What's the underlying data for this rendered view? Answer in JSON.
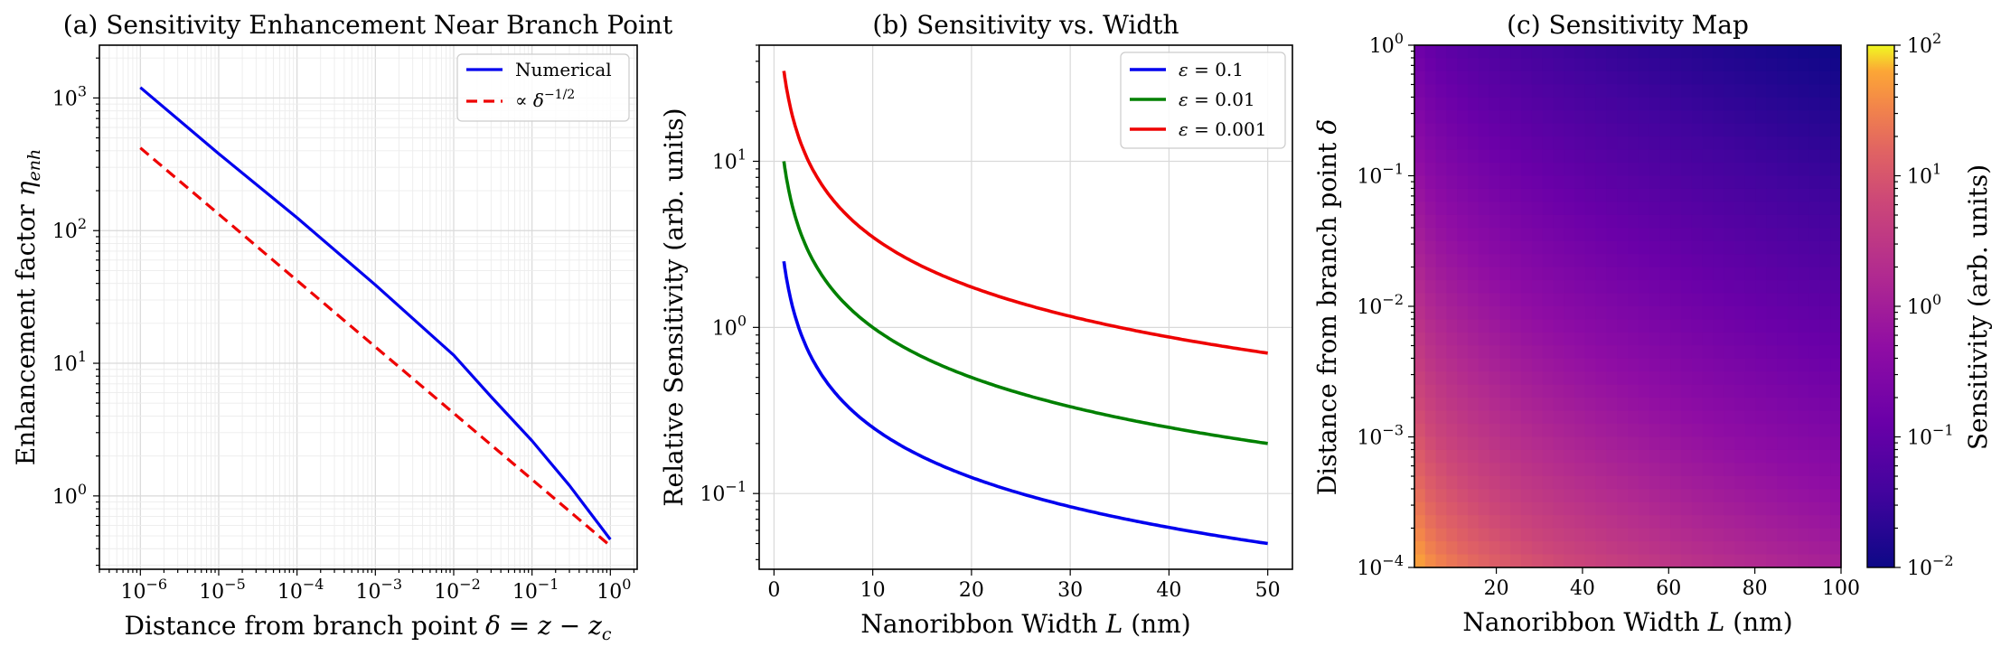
{
  "chart_data": [
    {
      "type": "line",
      "title": "(a) Sensitivity Enhancement Near Branch Point",
      "xlabel": "Distance from branch point δ = z − z_c",
      "ylabel": "Enhancement factor η_enh",
      "xscale": "log",
      "yscale": "log",
      "xlim": [
        3e-07,
        2.2
      ],
      "ylim": [
        0.28,
        2500
      ],
      "xticks": [
        {
          "value": 1e-06,
          "base": "10",
          "exp": "−6"
        },
        {
          "value": 1e-05,
          "base": "10",
          "exp": "−5"
        },
        {
          "value": 0.0001,
          "base": "10",
          "exp": "−4"
        },
        {
          "value": 0.001,
          "base": "10",
          "exp": "−3"
        },
        {
          "value": 0.01,
          "base": "10",
          "exp": "−2"
        },
        {
          "value": 0.1,
          "base": "10",
          "exp": "−1"
        },
        {
          "value": 1,
          "base": "10",
          "exp": "0"
        }
      ],
      "yticks": [
        {
          "value": 1,
          "base": "10",
          "exp": "0"
        },
        {
          "value": 10,
          "base": "10",
          "exp": "1"
        },
        {
          "value": 100,
          "base": "10",
          "exp": "2"
        },
        {
          "value": 1000,
          "base": "10",
          "exp": "3"
        }
      ],
      "grid": true,
      "legend": "top-right",
      "series": [
        {
          "name": "Numerical",
          "color": "#0000ee",
          "dash": "solid",
          "x": [
            1e-06,
            1e-05,
            0.0001,
            0.001,
            0.01,
            0.03,
            0.1,
            0.3,
            1
          ],
          "y": [
            1200,
            380,
            125,
            39,
            11.5,
            5.6,
            2.6,
            1.2,
            0.47
          ]
        },
        {
          "name": "∝ δ^−1/2",
          "color": "#ee0000",
          "dash": "dashed",
          "x": [
            1e-06,
            1e-05,
            0.0001,
            0.001,
            0.01,
            0.1,
            1
          ],
          "y": [
            420,
            133,
            42,
            13.3,
            4.2,
            1.33,
            0.42
          ]
        }
      ]
    },
    {
      "type": "line",
      "title": "(b) Sensitivity vs. Width",
      "xlabel": "Nanoribbon Width L (nm)",
      "ylabel": "Relative Sensitivity (arb. units)",
      "xscale": "linear",
      "yscale": "log",
      "xlim": [
        -1.5,
        52.5
      ],
      "ylim": [
        0.035,
        50
      ],
      "xticks": [
        0,
        10,
        20,
        30,
        40,
        50
      ],
      "yticks": [
        {
          "value": 0.1,
          "base": "10",
          "exp": "−1"
        },
        {
          "value": 1,
          "base": "10",
          "exp": "0"
        },
        {
          "value": 10,
          "base": "10",
          "exp": "1"
        }
      ],
      "grid": true,
      "legend": "top-right",
      "series": [
        {
          "name": "ε = 0.1",
          "color": "#0000ee",
          "amplitude": 2.5
        },
        {
          "name": "ε = 0.01",
          "color": "#008000",
          "amplitude": 10
        },
        {
          "name": "ε = 0.001",
          "color": "#ee0000",
          "amplitude": 35
        }
      ],
      "curve_model": "S(L) = amplitude / L, L from 1 to 50 nm"
    },
    {
      "type": "heatmap",
      "title": "(c) Sensitivity Map",
      "xlabel": "Nanoribbon Width L (nm)",
      "ylabel": "Distance from branch point δ",
      "xscale": "linear",
      "yscale": "log",
      "xlim": [
        1,
        100
      ],
      "ylim": [
        0.0001,
        1
      ],
      "xticks": [
        20,
        40,
        60,
        80,
        100
      ],
      "yticks": [
        {
          "value": 0.0001,
          "base": "10",
          "exp": "−4"
        },
        {
          "value": 0.001,
          "base": "10",
          "exp": "−3"
        },
        {
          "value": 0.01,
          "base": "10",
          "exp": "−2"
        },
        {
          "value": 0.1,
          "base": "10",
          "exp": "−1"
        },
        {
          "value": 1,
          "base": "10",
          "exp": "0"
        }
      ],
      "colormap": "plasma",
      "colorbar": {
        "label": "Sensitivity (arb. units)",
        "scale": "log",
        "range": [
          0.01,
          100
        ],
        "ticks": [
          {
            "value": 0.01,
            "base": "10",
            "exp": "−2"
          },
          {
            "value": 0.1,
            "base": "10",
            "exp": "−1"
          },
          {
            "value": 1,
            "base": "10",
            "exp": "0"
          },
          {
            "value": 10,
            "base": "10",
            "exp": "1"
          },
          {
            "value": 100,
            "base": "10",
            "exp": "2"
          }
        ]
      },
      "corner_values": {
        "L1_delta1e-4": 100,
        "L100_delta1e-4": 1.2,
        "L1_delta1": 0.2,
        "L100_delta1": 0.01
      }
    }
  ]
}
